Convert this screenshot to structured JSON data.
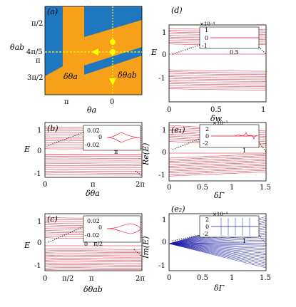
{
  "colors": {
    "blue": "#1f77c0",
    "orange": "#f7a11a",
    "yellow": "#ffff00",
    "red": "#e8001c",
    "dark_blue": "#1a1aa6",
    "black": "#000000"
  },
  "chart_data": [
    {
      "panel": "(a)",
      "type": "heatmap",
      "xlabel": "θa",
      "ylabel": "θab",
      "x_ticks": [
        "π",
        "0"
      ],
      "y_ticks": [
        "π/2",
        "4π/5",
        "π",
        "3π/2"
      ],
      "annotations": [
        "δθa",
        "δθab"
      ],
      "regions": [
        "blue",
        "orange"
      ]
    },
    {
      "panel": "(b)",
      "type": "line",
      "xlabel": "δθa",
      "ylabel": "E",
      "x_ticks": [
        "0",
        "π",
        "2π"
      ],
      "y_ticks": [
        "1",
        "0",
        "-1"
      ],
      "xlim": [
        0,
        6.283
      ],
      "ylim": [
        -1.2,
        1.3
      ],
      "inset": {
        "y_ticks": [
          "0.02",
          "0",
          "-0.02"
        ],
        "x_ticks": [
          "π"
        ]
      }
    },
    {
      "panel": "(c)",
      "type": "line",
      "xlabel": "δθab",
      "ylabel": "E",
      "x_ticks": [
        "0",
        "π/2",
        "π",
        "2π"
      ],
      "y_ticks": [
        "1",
        "0",
        "-1"
      ],
      "xlim": [
        0,
        6.283
      ],
      "ylim": [
        -1.3,
        1.3
      ],
      "inset": {
        "y_ticks": [
          "0.02",
          "0",
          "-0.02"
        ],
        "x_ticks": [
          "0",
          "π/2"
        ]
      }
    },
    {
      "panel": "(d)",
      "type": "line",
      "xlabel": "δw",
      "ylabel": "E",
      "x_ticks": [
        "0",
        "0.5",
        "1"
      ],
      "y_ticks": [
        "1",
        "0",
        "-1"
      ],
      "xlim": [
        0,
        1
      ],
      "ylim": [
        -1.3,
        1.3
      ],
      "inset": {
        "multiplier": "×10⁻⁴",
        "y_ticks": [
          "1",
          "0",
          "-1"
        ],
        "x_ticks": [
          "0.5"
        ]
      }
    },
    {
      "panel": "(e1)",
      "type": "line",
      "xlabel": "δΓ",
      "ylabel": "Re(E)",
      "x_ticks": [
        "0",
        "0.5",
        "1",
        "1.5"
      ],
      "y_ticks": [
        "1",
        "0",
        "-1"
      ],
      "xlim": [
        0,
        1.5
      ],
      "ylim": [
        -1.3,
        1.3
      ],
      "inset": {
        "multiplier": "×10⁻³",
        "y_ticks": [
          "2",
          "0",
          "-2"
        ],
        "x_ticks": [
          "1"
        ]
      }
    },
    {
      "panel": "(e2)",
      "type": "line",
      "xlabel": "δΓ",
      "ylabel": "Im(E)",
      "x_ticks": [
        "0",
        "0.5",
        "1",
        "1.5"
      ],
      "y_ticks": [
        "1",
        "0",
        "-1"
      ],
      "xlim": [
        0,
        1.5
      ],
      "ylim": [
        -1.3,
        1.3
      ],
      "inset": {
        "multiplier": "×10⁻⁴",
        "y_ticks": [
          "2",
          "0",
          "-2"
        ],
        "x_ticks": [
          "1"
        ]
      }
    }
  ],
  "labels": {
    "a": "(a)",
    "b": "(b)",
    "c": "(c)",
    "d": "(d)",
    "e1": "(e₁)",
    "e2": "(e₂)",
    "a_xlabel": "θa",
    "a_ylabel": "θab",
    "a_x_pi": "π",
    "a_x_0": "0",
    "a_y_pi2": "π/2",
    "a_y_4pi5": "4π/5",
    "a_y_pi": "π",
    "a_y_3pi2": "3π/2",
    "a_dtheta_a": "δθa",
    "a_dtheta_ab": "δθab",
    "E": "E",
    "ReE": "Re(E)",
    "ImE": "Im(E)",
    "b_xlabel": "δθa",
    "c_xlabel": "δθab",
    "d_xlabel": "δw",
    "e_xlabel": "δΓ",
    "t1": "1",
    "t0": "0",
    "tm1": "-1",
    "x0": "0",
    "xpi": "π",
    "x2pi": "2π",
    "xpi2": "π/2",
    "x05": "0.5",
    "x1": "1",
    "x15": "1.5",
    "in_002": "0.02",
    "in_0": "0",
    "in_m002": "-0.02",
    "in_pi": "π",
    "in_pi2": "π/2",
    "in_1": "1",
    "in_m1": "-1",
    "in_05": "0.5",
    "in_2": "2",
    "in_m2": "-2",
    "mult4": "×10⁻⁴",
    "mult3": "×10⁻³"
  }
}
